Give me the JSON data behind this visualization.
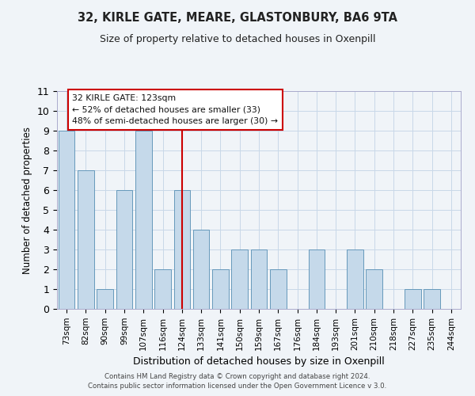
{
  "title": "32, KIRLE GATE, MEARE, GLASTONBURY, BA6 9TA",
  "subtitle": "Size of property relative to detached houses in Oxenpill",
  "xlabel": "Distribution of detached houses by size in Oxenpill",
  "ylabel": "Number of detached properties",
  "bins": [
    "73sqm",
    "82sqm",
    "90sqm",
    "99sqm",
    "107sqm",
    "116sqm",
    "124sqm",
    "133sqm",
    "141sqm",
    "150sqm",
    "159sqm",
    "167sqm",
    "176sqm",
    "184sqm",
    "193sqm",
    "201sqm",
    "210sqm",
    "218sqm",
    "227sqm",
    "235sqm",
    "244sqm"
  ],
  "values": [
    9,
    7,
    1,
    6,
    9,
    2,
    6,
    4,
    2,
    3,
    3,
    2,
    0,
    3,
    0,
    3,
    2,
    0,
    1,
    1,
    0
  ],
  "highlight_bin": "124sqm",
  "highlight_color": "#cc0000",
  "bar_color": "#c5d9ea",
  "bar_edge_color": "#6699bb",
  "ylim": [
    0,
    11
  ],
  "yticks": [
    0,
    1,
    2,
    3,
    4,
    5,
    6,
    7,
    8,
    9,
    10,
    11
  ],
  "annotation_title": "32 KIRLE GATE: 123sqm",
  "annotation_line1": "← 52% of detached houses are smaller (33)",
  "annotation_line2": "48% of semi-detached houses are larger (30) →",
  "footer1": "Contains HM Land Registry data © Crown copyright and database right 2024.",
  "footer2": "Contains public sector information licensed under the Open Government Licence v 3.0.",
  "background_color": "#ffffff",
  "grid_color": "#c8d8e8",
  "fig_bg": "#f0f4f8"
}
